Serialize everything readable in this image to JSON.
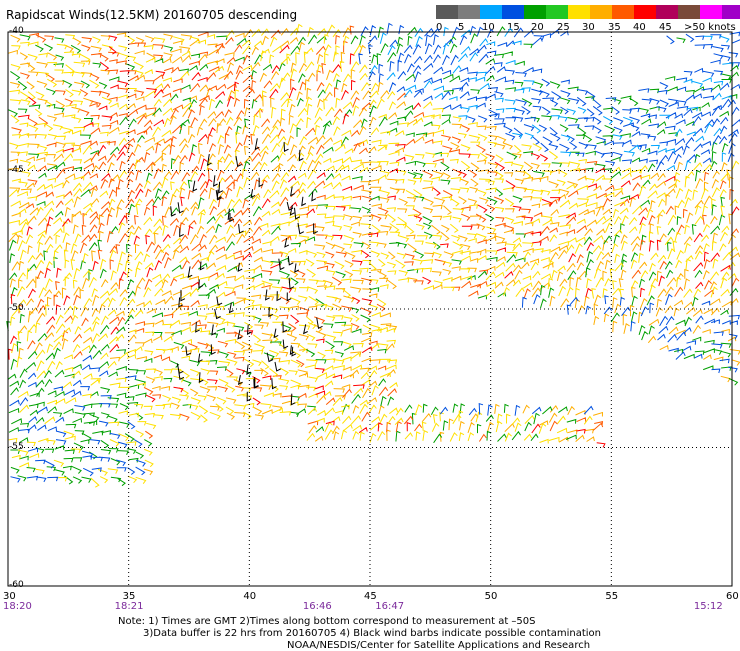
{
  "title": "Rapidscat Winds(12.5KM) 20160705 descending",
  "legend": {
    "labels": [
      "0",
      "5",
      "10",
      "15",
      "20",
      "25",
      "30",
      "35",
      "40",
      "45",
      ">50 knots"
    ],
    "colors": [
      "#5a5a5a",
      "#7d7d7d",
      "#00a6ff",
      "#0050e0",
      "#00a000",
      "#22c822",
      "#ffe000",
      "#ffae00",
      "#ff5a00",
      "#ff0000",
      "#b0005a",
      "#7a4a3a",
      "#ff00ff",
      "#a000c8",
      "#5a0090"
    ]
  },
  "map": {
    "lon_range": [
      30,
      60
    ],
    "lat_range": [
      -40,
      -60
    ],
    "lon_ticks": [
      "30",
      "35",
      "40",
      "45",
      "50",
      "55",
      "60"
    ],
    "lat_ticks": [
      "-40",
      "-45",
      "-50",
      "-55",
      "-60"
    ],
    "time_labels": [
      {
        "text": "18:20",
        "lon": 30
      },
      {
        "text": "18:21",
        "lon": 35
      },
      {
        "text": "16:46",
        "lon": 42.8
      },
      {
        "text": "16:47",
        "lon": 45.8
      },
      {
        "text": "15:12",
        "lon": 59
      }
    ]
  },
  "notes": [
    "Note: 1) Times are GMT 2)Times along bottom correspond to measurement at –50S",
    "3)Data buffer is 22 hrs from 20160705 4) Black wind barbs indicate possible contamination",
    "NOAA/NESDIS/Center for Satellite Applications and Research"
  ]
}
